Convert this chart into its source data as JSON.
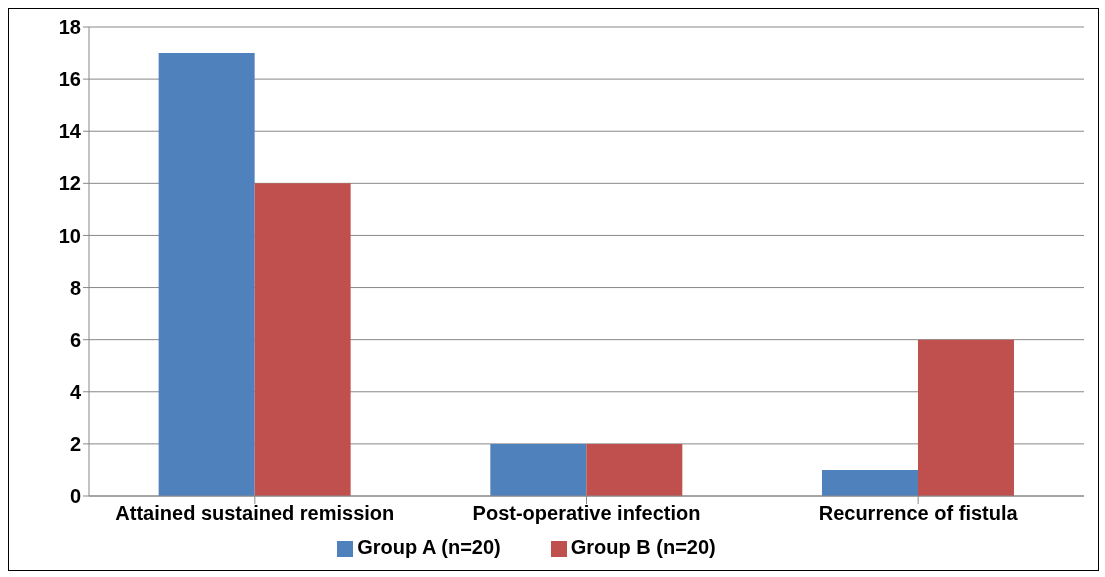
{
  "chart_data": {
    "type": "bar",
    "categories": [
      "Attained sustained remission",
      "Post-operative infection",
      "Recurrence of fistula"
    ],
    "series": [
      {
        "name": "Group A (n=20)",
        "color": "#4f81bd",
        "values": [
          17,
          2,
          1
        ]
      },
      {
        "name": "Group B (n=20)",
        "color": "#c0504d",
        "values": [
          12,
          2,
          6
        ]
      }
    ],
    "ylim": [
      0,
      18
    ],
    "yticks": [
      0,
      2,
      4,
      6,
      8,
      10,
      12,
      14,
      16,
      18
    ],
    "grid": "y",
    "legend": "bottom"
  }
}
